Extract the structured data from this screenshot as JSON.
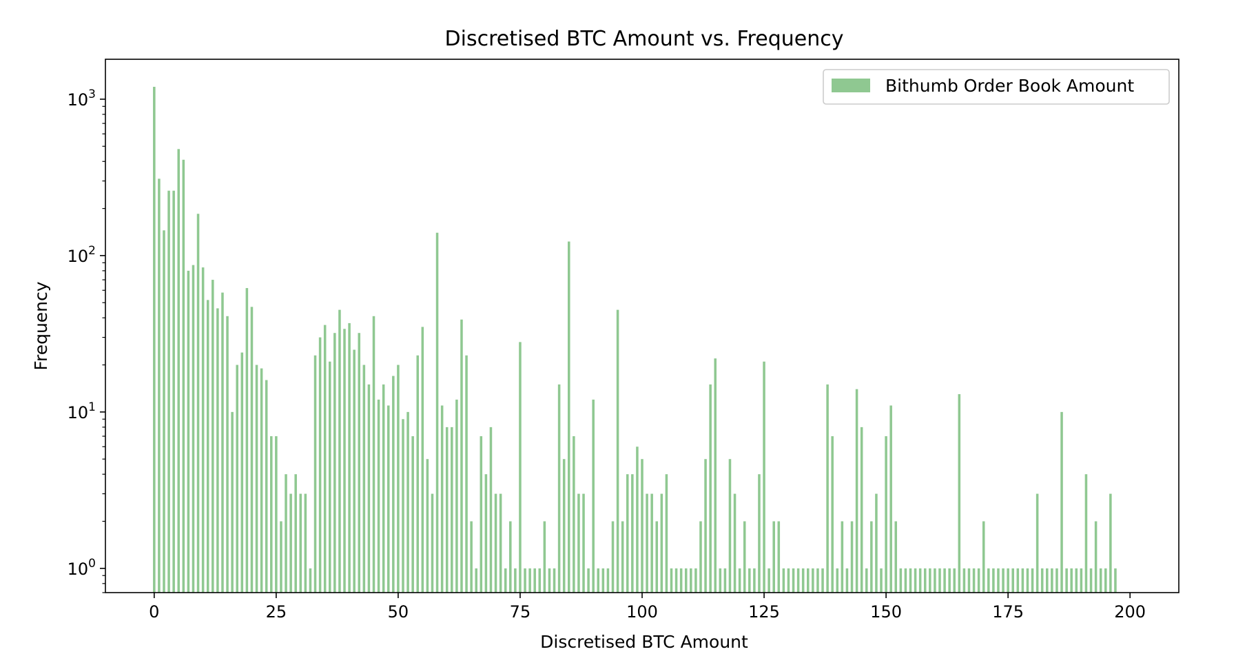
{
  "chart_data": {
    "type": "bar",
    "title": "Discretised BTC Amount vs. Frequency",
    "xlabel": "Discretised BTC Amount",
    "ylabel": "Frequency",
    "yscale": "log",
    "xlim": [
      -10,
      210
    ],
    "ylim": [
      0.7,
      1800
    ],
    "x_ticks": [
      0,
      25,
      50,
      75,
      100,
      125,
      150,
      175,
      200
    ],
    "x_tick_labels": [
      "0",
      "25",
      "50",
      "75",
      "100",
      "125",
      "150",
      "175",
      "200"
    ],
    "y_ticks": [
      1,
      10,
      100,
      1000
    ],
    "y_tick_labels": [
      {
        "base": "10",
        "exp": "0"
      },
      {
        "base": "10",
        "exp": "1"
      },
      {
        "base": "10",
        "exp": "2"
      },
      {
        "base": "10",
        "exp": "3"
      }
    ],
    "grid": false,
    "legend_placement": "top-right",
    "series": [
      {
        "name": "Bithumb Order Book Amount",
        "color": "#8fc891",
        "points": [
          [
            0,
            1200
          ],
          [
            1,
            310
          ],
          [
            2,
            145
          ],
          [
            3,
            260
          ],
          [
            4,
            260
          ],
          [
            5,
            480
          ],
          [
            6,
            410
          ],
          [
            7,
            80
          ],
          [
            8,
            87
          ],
          [
            9,
            185
          ],
          [
            10,
            84
          ],
          [
            11,
            52
          ],
          [
            12,
            70
          ],
          [
            13,
            46
          ],
          [
            14,
            58
          ],
          [
            15,
            41
          ],
          [
            16,
            10
          ],
          [
            17,
            20
          ],
          [
            18,
            24
          ],
          [
            19,
            62
          ],
          [
            20,
            47
          ],
          [
            21,
            20
          ],
          [
            22,
            19
          ],
          [
            23,
            16
          ],
          [
            24,
            7
          ],
          [
            25,
            7
          ],
          [
            26,
            2
          ],
          [
            27,
            4
          ],
          [
            28,
            3
          ],
          [
            29,
            4
          ],
          [
            30,
            3
          ],
          [
            31,
            3
          ],
          [
            32,
            1
          ],
          [
            33,
            23
          ],
          [
            34,
            30
          ],
          [
            35,
            36
          ],
          [
            36,
            21
          ],
          [
            37,
            32
          ],
          [
            38,
            45
          ],
          [
            39,
            34
          ],
          [
            40,
            37
          ],
          [
            41,
            25
          ],
          [
            42,
            32
          ],
          [
            43,
            20
          ],
          [
            44,
            15
          ],
          [
            45,
            41
          ],
          [
            46,
            12
          ],
          [
            47,
            15
          ],
          [
            48,
            11
          ],
          [
            49,
            17
          ],
          [
            50,
            20
          ],
          [
            51,
            9
          ],
          [
            52,
            10
          ],
          [
            53,
            7
          ],
          [
            54,
            23
          ],
          [
            55,
            35
          ],
          [
            56,
            5
          ],
          [
            57,
            3
          ],
          [
            58,
            140
          ],
          [
            59,
            11
          ],
          [
            60,
            8
          ],
          [
            61,
            8
          ],
          [
            62,
            12
          ],
          [
            63,
            39
          ],
          [
            64,
            23
          ],
          [
            65,
            2
          ],
          [
            66,
            1
          ],
          [
            67,
            7
          ],
          [
            68,
            4
          ],
          [
            69,
            8
          ],
          [
            70,
            3
          ],
          [
            71,
            3
          ],
          [
            72,
            1
          ],
          [
            73,
            2
          ],
          [
            74,
            1
          ],
          [
            75,
            28
          ],
          [
            76,
            1
          ],
          [
            77,
            1
          ],
          [
            78,
            1
          ],
          [
            79,
            1
          ],
          [
            80,
            2
          ],
          [
            81,
            1
          ],
          [
            82,
            1
          ],
          [
            83,
            15
          ],
          [
            84,
            5
          ],
          [
            85,
            123
          ],
          [
            86,
            7
          ],
          [
            87,
            3
          ],
          [
            88,
            3
          ],
          [
            89,
            1
          ],
          [
            90,
            12
          ],
          [
            91,
            1
          ],
          [
            92,
            1
          ],
          [
            93,
            1
          ],
          [
            94,
            2
          ],
          [
            95,
            45
          ],
          [
            96,
            2
          ],
          [
            97,
            4
          ],
          [
            98,
            4
          ],
          [
            99,
            6
          ],
          [
            100,
            5
          ],
          [
            101,
            3
          ],
          [
            102,
            3
          ],
          [
            103,
            2
          ],
          [
            104,
            3
          ],
          [
            105,
            4
          ],
          [
            106,
            1
          ],
          [
            107,
            1
          ],
          [
            108,
            1
          ],
          [
            109,
            1
          ],
          [
            110,
            1
          ],
          [
            111,
            1
          ],
          [
            112,
            2
          ],
          [
            113,
            5
          ],
          [
            114,
            15
          ],
          [
            115,
            22
          ],
          [
            116,
            1
          ],
          [
            117,
            1
          ],
          [
            118,
            5
          ],
          [
            119,
            3
          ],
          [
            120,
            1
          ],
          [
            121,
            2
          ],
          [
            122,
            1
          ],
          [
            123,
            1
          ],
          [
            124,
            4
          ],
          [
            125,
            21
          ],
          [
            126,
            1
          ],
          [
            127,
            2
          ],
          [
            128,
            2
          ],
          [
            129,
            1
          ],
          [
            130,
            1
          ],
          [
            131,
            1
          ],
          [
            132,
            1
          ],
          [
            133,
            1
          ],
          [
            134,
            1
          ],
          [
            135,
            1
          ],
          [
            136,
            1
          ],
          [
            137,
            1
          ],
          [
            138,
            15
          ],
          [
            139,
            7
          ],
          [
            140,
            1
          ],
          [
            141,
            2
          ],
          [
            142,
            1
          ],
          [
            143,
            2
          ],
          [
            144,
            14
          ],
          [
            145,
            8
          ],
          [
            146,
            1
          ],
          [
            147,
            2
          ],
          [
            148,
            3
          ],
          [
            149,
            1
          ],
          [
            150,
            7
          ],
          [
            151,
            11
          ],
          [
            152,
            2
          ],
          [
            153,
            1
          ],
          [
            154,
            1
          ],
          [
            155,
            1
          ],
          [
            156,
            1
          ],
          [
            157,
            1
          ],
          [
            158,
            1
          ],
          [
            159,
            1
          ],
          [
            160,
            1
          ],
          [
            161,
            1
          ],
          [
            162,
            1
          ],
          [
            163,
            1
          ],
          [
            164,
            1
          ],
          [
            165,
            13
          ],
          [
            166,
            1
          ],
          [
            167,
            1
          ],
          [
            168,
            1
          ],
          [
            169,
            1
          ],
          [
            170,
            2
          ],
          [
            171,
            1
          ],
          [
            172,
            1
          ],
          [
            173,
            1
          ],
          [
            174,
            1
          ],
          [
            175,
            1
          ],
          [
            176,
            1
          ],
          [
            177,
            1
          ],
          [
            178,
            1
          ],
          [
            179,
            1
          ],
          [
            180,
            1
          ],
          [
            181,
            3
          ],
          [
            182,
            1
          ],
          [
            183,
            1
          ],
          [
            184,
            1
          ],
          [
            185,
            1
          ],
          [
            186,
            10
          ],
          [
            187,
            1
          ],
          [
            188,
            1
          ],
          [
            189,
            1
          ],
          [
            190,
            1
          ],
          [
            191,
            4
          ],
          [
            192,
            1
          ],
          [
            193,
            2
          ],
          [
            194,
            1
          ],
          [
            195,
            1
          ],
          [
            196,
            3
          ],
          [
            197,
            1
          ]
        ]
      }
    ]
  }
}
